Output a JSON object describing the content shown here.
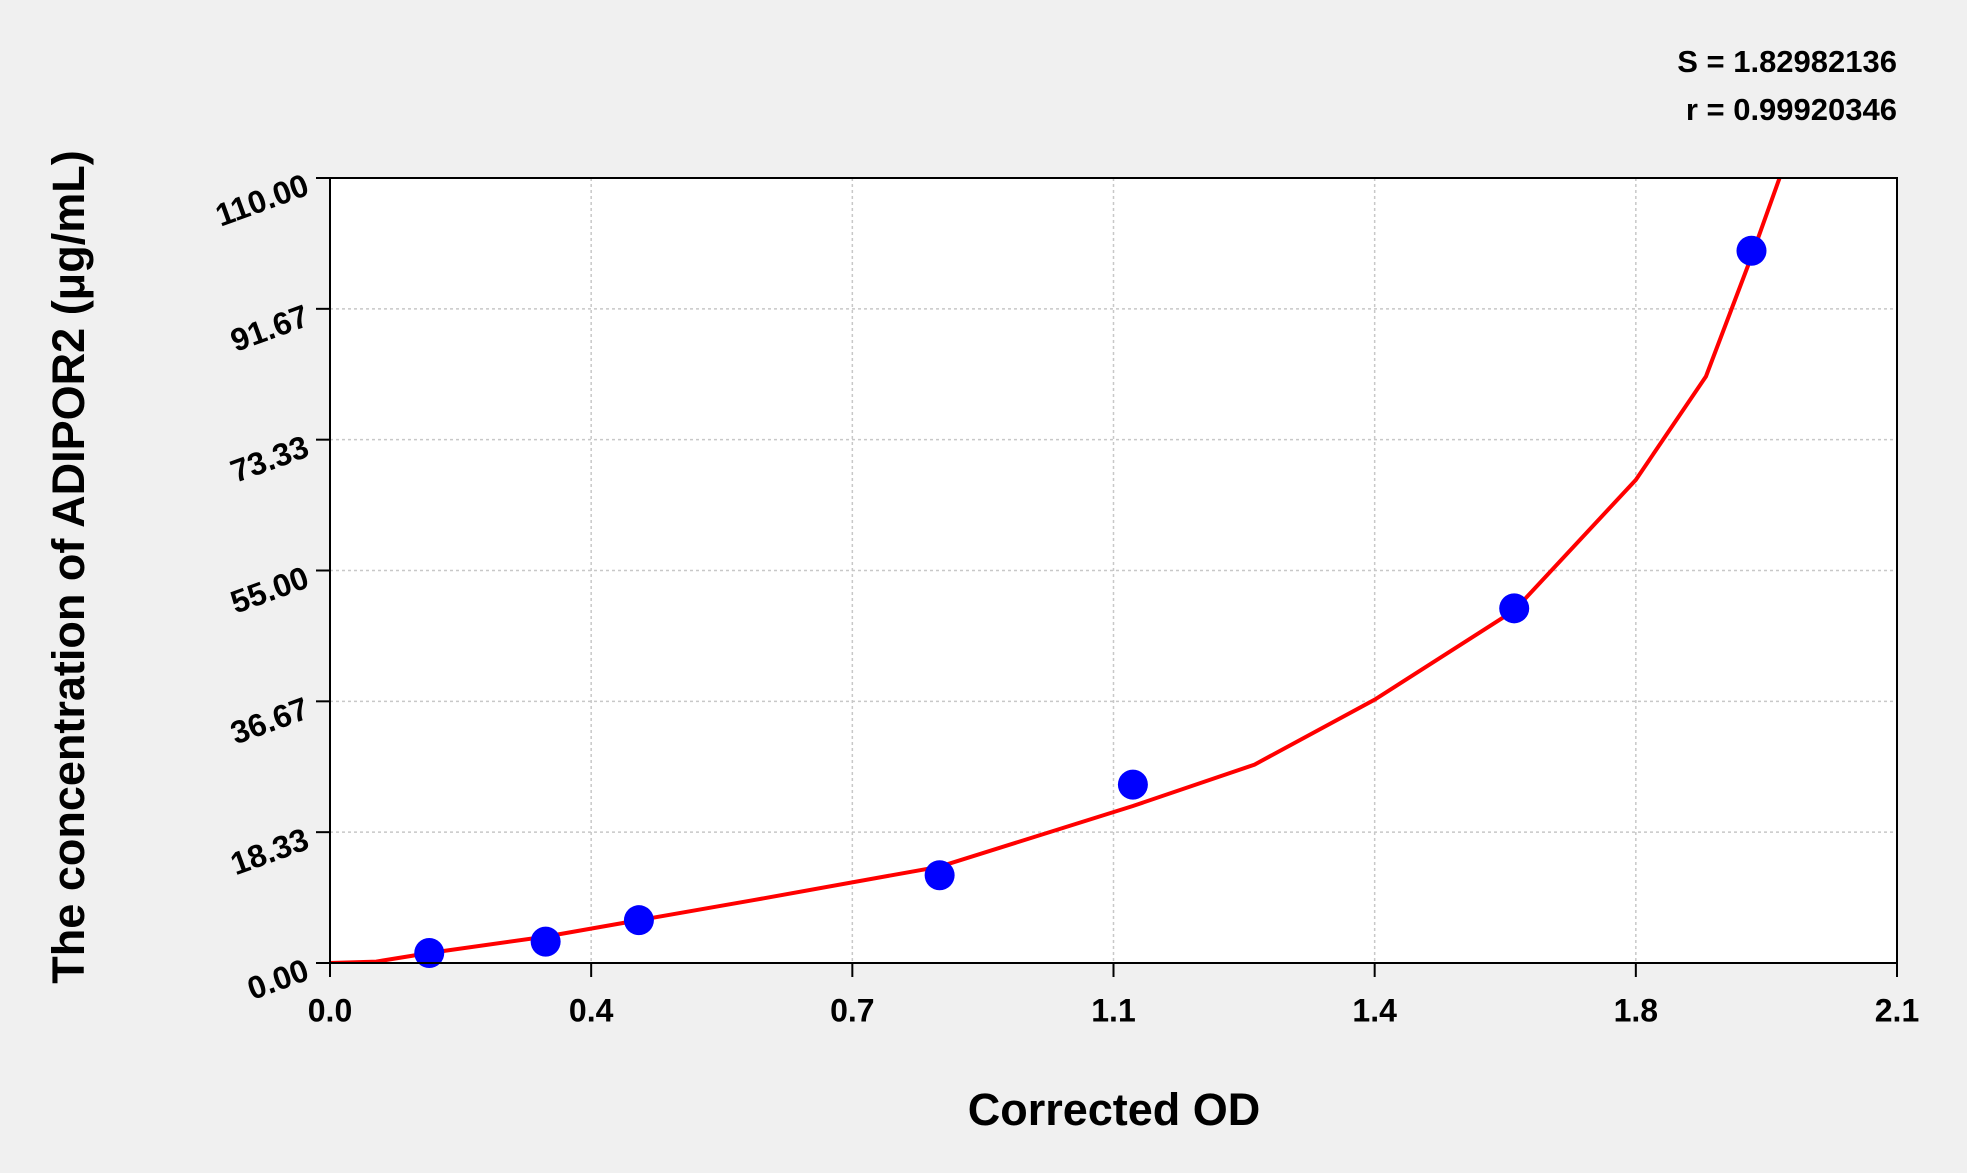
{
  "chart_data": {
    "type": "scatter",
    "y_label": "The concentration of ADIPOR2 (μg/mL)",
    "x_label": "Corrected OD",
    "annotations": [
      "S = 1.82982136",
      "r = 0.99920346"
    ],
    "xlim": [
      0,
      2.1
    ],
    "ylim": [
      0,
      110
    ],
    "xticks": [
      {
        "value": 0,
        "label": "0.0"
      },
      {
        "value": 0.35,
        "label": "0.4"
      },
      0.7,
      {
        "value": 1.05,
        "label": "1.1"
      },
      1.4,
      {
        "value": 1.75,
        "label": "1.8"
      },
      2.1
    ],
    "yticks": [
      {
        "value": 0,
        "label": "0.00"
      },
      {
        "value": 18.333333,
        "label": "18.33"
      },
      {
        "value": 36.666667,
        "label": "36.67"
      },
      {
        "value": 55,
        "label": "55.00"
      },
      {
        "value": 73.333333,
        "label": "73.33"
      },
      {
        "value": 91.666667,
        "label": "91.67"
      },
      {
        "value": 110,
        "label": "110.00"
      }
    ],
    "grid": true,
    "points": {
      "color": "#0000ff",
      "x": [
        0.133,
        0.289,
        0.414,
        0.817,
        1.076,
        1.587,
        1.905
      ],
      "y": [
        1.4,
        3.0,
        6.0,
        12.3,
        25.0,
        49.7,
        99.8
      ]
    },
    "curve": {
      "color": "#ff0000",
      "x": [
        0,
        0.062,
        0.133,
        0.289,
        0.414,
        0.567,
        0.817,
        1.076,
        1.239,
        1.4,
        1.587,
        1.75,
        1.844,
        1.905,
        1.945
      ],
      "y": [
        0,
        0.2,
        1.4,
        3.7,
        6.0,
        8.8,
        13.5,
        22.0,
        27.8,
        36.9,
        49.4,
        67.7,
        82.2,
        99.0,
        110.7
      ]
    }
  }
}
